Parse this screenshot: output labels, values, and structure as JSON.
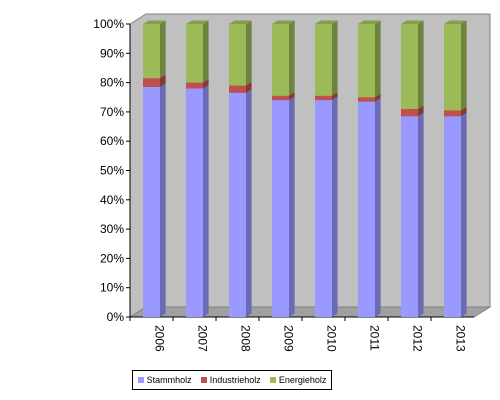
{
  "chart_data": {
    "type": "bar",
    "stacked": true,
    "percent": true,
    "three_d": true,
    "categories": [
      "2006",
      "2007",
      "2008",
      "2009",
      "2010",
      "2011",
      "2012",
      "2013"
    ],
    "series": [
      {
        "name": "Stammholz",
        "color": "#9999ff",
        "values": [
          78.5,
          78,
          76.5,
          74,
          74,
          73.5,
          68.5,
          68.5
        ]
      },
      {
        "name": "Industrieholz",
        "color": "#c0504d",
        "values": [
          3,
          2,
          2.5,
          1.5,
          1.5,
          1.5,
          2.5,
          2
        ]
      },
      {
        "name": "Energieholz",
        "color": "#9bbb59",
        "values": [
          18.5,
          20,
          21,
          24.5,
          24.5,
          25,
          29,
          29.5
        ]
      }
    ],
    "y_ticks": [
      "0%",
      "10%",
      "20%",
      "30%",
      "40%",
      "50%",
      "60%",
      "70%",
      "80%",
      "90%",
      "100%"
    ],
    "ylim": [
      0,
      100
    ],
    "legend_position": "bottom",
    "grid": false,
    "wall_color": "#c0c0c0"
  }
}
